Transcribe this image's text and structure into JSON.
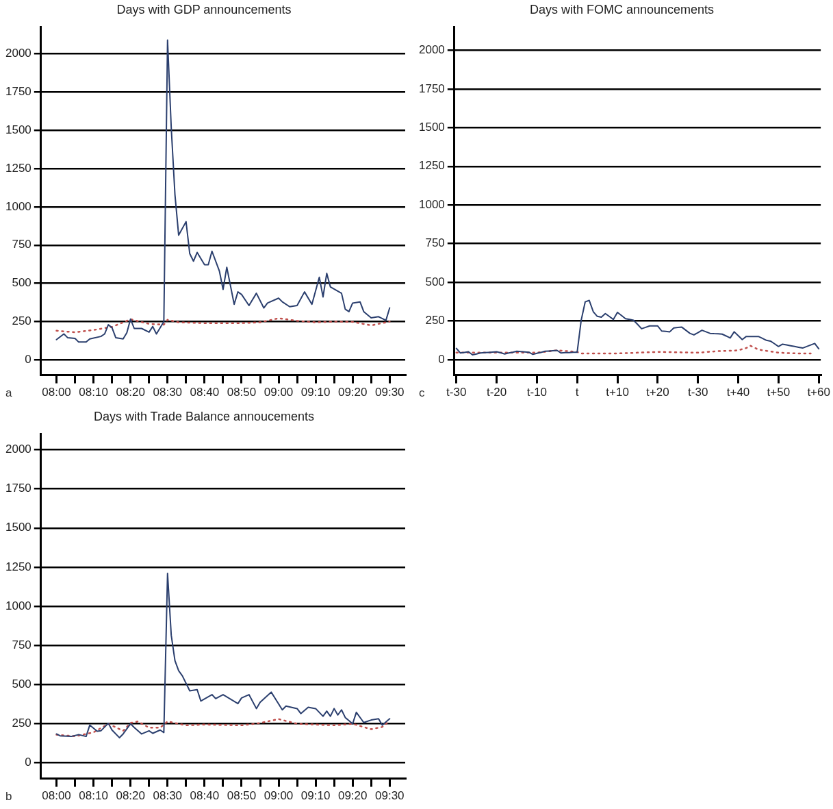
{
  "chart_data": [
    {
      "type": "line",
      "title": "Days with GDP announcements",
      "annotations": [
        "a"
      ],
      "grid": "y",
      "marker": "none",
      "xlim": [
        7.93,
        9.57
      ],
      "ylim": [
        -100,
        2175
      ],
      "xticks": [
        {
          "value": 8,
          "label": "08:00"
        },
        {
          "value": 8.0833,
          "label": null
        },
        {
          "value": 8.1667,
          "label": "08:10"
        },
        {
          "value": 8.25,
          "label": null
        },
        {
          "value": 8.3333,
          "label": "08:20"
        },
        {
          "value": 8.4167,
          "label": null
        },
        {
          "value": 8.5,
          "label": "08:30"
        },
        {
          "value": 8.5833,
          "label": null
        },
        {
          "value": 8.6667,
          "label": "08:40"
        },
        {
          "value": 8.75,
          "label": null
        },
        {
          "value": 8.8333,
          "label": "08:50"
        },
        {
          "value": 8.9167,
          "label": null
        },
        {
          "value": 9,
          "label": "09:00"
        },
        {
          "value": 9.0833,
          "label": null
        },
        {
          "value": 9.1667,
          "label": "09:10"
        },
        {
          "value": 9.25,
          "label": null
        },
        {
          "value": 9.3333,
          "label": "09:20"
        },
        {
          "value": 9.4167,
          "label": null
        },
        {
          "value": 9.5,
          "label": "09:30"
        }
      ],
      "yticks": [
        0,
        250,
        500,
        750,
        1000,
        1250,
        1500,
        1750,
        2000
      ],
      "series": [
        {
          "color": "#2b3f6e",
          "line_style": "solid",
          "x": [
            8,
            8.0333,
            8.05,
            8.0833,
            8.1,
            8.1333,
            8.15,
            8.2,
            8.2167,
            8.2333,
            8.25,
            8.2667,
            8.3,
            8.3167,
            8.3333,
            8.35,
            8.3833,
            8.4167,
            8.4333,
            8.45,
            8.4833,
            8.5,
            8.5167,
            8.5333,
            8.55,
            8.5833,
            8.6,
            8.6167,
            8.6333,
            8.6667,
            8.6833,
            8.7,
            8.7333,
            8.75,
            8.7667,
            8.8,
            8.8167,
            8.8333,
            8.8667,
            8.9,
            8.9333,
            8.95,
            9,
            9.0167,
            9.05,
            9.0833,
            9.1167,
            9.15,
            9.1833,
            9.2,
            9.2167,
            9.2333,
            9.2833,
            9.3,
            9.3167,
            9.3333,
            9.3667,
            9.3833,
            9.4167,
            9.45,
            9.4833,
            9.5
          ],
          "values": [
            132,
            169,
            145,
            140,
            116,
            116,
            137,
            153,
            169,
            229,
            210,
            145,
            137,
            177,
            266,
            205,
            205,
            181,
            218,
            169,
            250,
            2090,
            1516,
            1080,
            815,
            903,
            694,
            645,
            702,
            621,
            621,
            710,
            581,
            460,
            605,
            363,
            444,
            427,
            355,
            435,
            339,
            371,
            403,
            379,
            347,
            355,
            444,
            363,
            540,
            411,
            565,
            476,
            435,
            331,
            315,
            371,
            379,
            315,
            274,
            282,
            258,
            339
          ]
        },
        {
          "color": "#c0504d",
          "line_style": "dotted",
          "x": [
            8,
            8.0833,
            8.1667,
            8.25,
            8.3333,
            8.4167,
            8.4833,
            8.5,
            8.55,
            8.6667,
            8.8333,
            8.9167,
            9,
            9.0833,
            9.1667,
            9.25,
            9.3333,
            9.4167,
            9.5
          ],
          "values": [
            190,
            180,
            195,
            215,
            265,
            235,
            230,
            262,
            245,
            240,
            240,
            245,
            272,
            255,
            245,
            250,
            248,
            225,
            250
          ]
        }
      ]
    },
    {
      "type": "line",
      "title": "Days with FOMC announcements",
      "annotations": [
        "c"
      ],
      "grid": "y",
      "marker": "none",
      "ylim": [
        -100,
        2150
      ],
      "categories": [
        "t-30",
        null,
        null,
        null,
        null,
        null,
        null,
        null,
        null,
        null,
        "t-20",
        null,
        null,
        null,
        null,
        null,
        null,
        null,
        null,
        null,
        "t-10",
        null,
        null,
        null,
        null,
        null,
        null,
        null,
        null,
        null,
        "t",
        null,
        null,
        null,
        null,
        null,
        null,
        null,
        null,
        null,
        "t+10",
        null,
        null,
        null,
        null,
        null,
        null,
        null,
        null,
        null,
        "t+20",
        null,
        null,
        null,
        null,
        null,
        null,
        null,
        null,
        null,
        "t-30",
        null,
        null,
        null,
        null,
        null,
        null,
        null,
        null,
        null,
        "t+40",
        null,
        null,
        null,
        null,
        null,
        null,
        null,
        null,
        null,
        "t+50",
        null,
        null,
        null,
        null,
        null,
        null,
        null,
        null,
        null,
        "t+60"
      ],
      "yticks": [
        0,
        250,
        500,
        750,
        1000,
        1250,
        1500,
        1750,
        2000
      ],
      "series": [
        {
          "color": "#2b3f6e",
          "line_style": "solid",
          "values": [
            73,
            43,
            47,
            51,
            31,
            37,
            43,
            45,
            47,
            49,
            51,
            44,
            37,
            43,
            48,
            54,
            52,
            50,
            48,
            34,
            41,
            47,
            54,
            56,
            58,
            60,
            43,
            45,
            46,
            48,
            48,
            255,
            374,
            383,
            310,
            280,
            275,
            298,
            279,
            260,
            306,
            286,
            265,
            260,
            255,
            228,
            200,
            209,
            218,
            218,
            218,
            185,
            183,
            180,
            205,
            208,
            210,
            190,
            170,
            160,
            175,
            190,
            180,
            170,
            168,
            167,
            165,
            153,
            140,
            180,
            155,
            130,
            150,
            150,
            150,
            150,
            138,
            125,
            120,
            103,
            85,
            100,
            95,
            90,
            85,
            80,
            75,
            85,
            95,
            105,
            70
          ]
        },
        {
          "color": "#c0504d",
          "line_style": "dotted",
          "values": [
            45,
            45,
            45,
            45,
            45,
            45,
            45,
            45,
            45,
            45,
            45,
            45,
            45,
            45,
            45,
            45,
            45,
            45,
            45,
            45,
            45,
            48,
            51,
            54,
            57,
            60,
            58,
            56,
            54,
            52,
            50,
            40,
            40,
            40,
            40,
            40,
            40,
            40,
            40,
            40,
            40,
            41,
            42,
            43,
            44,
            45,
            46,
            47,
            48,
            49,
            50,
            50,
            49,
            49,
            48,
            48,
            47,
            47,
            46,
            46,
            45,
            47,
            49,
            51,
            53,
            55,
            56,
            57,
            58,
            59,
            60,
            68,
            75,
            90,
            78,
            65,
            61,
            57,
            53,
            49,
            45,
            44,
            43,
            42,
            41,
            40,
            40,
            40,
            40,
            null,
            null
          ]
        }
      ]
    },
    {
      "type": "line",
      "title": "Days with Trade Balance annoucements",
      "annotations": [
        "b"
      ],
      "grid": "y",
      "marker": "none",
      "xlim": [
        7.93,
        9.57
      ],
      "ylim": [
        -100,
        2100
      ],
      "xticks": [
        {
          "value": 8,
          "label": "08:00"
        },
        {
          "value": 8.0833,
          "label": null
        },
        {
          "value": 8.1667,
          "label": "08:10"
        },
        {
          "value": 8.25,
          "label": null
        },
        {
          "value": 8.3333,
          "label": "08:20"
        },
        {
          "value": 8.4167,
          "label": null
        },
        {
          "value": 8.5,
          "label": "08:30"
        },
        {
          "value": 8.5833,
          "label": null
        },
        {
          "value": 8.6667,
          "label": "08:40"
        },
        {
          "value": 8.75,
          "label": null
        },
        {
          "value": 8.8333,
          "label": "08:50"
        },
        {
          "value": 8.9167,
          "label": null
        },
        {
          "value": 9,
          "label": "09:00"
        },
        {
          "value": 9.0833,
          "label": null
        },
        {
          "value": 9.1667,
          "label": "09:10"
        },
        {
          "value": 9.25,
          "label": null
        },
        {
          "value": 9.3333,
          "label": "09:20"
        },
        {
          "value": 9.4167,
          "label": null
        },
        {
          "value": 9.5,
          "label": "09:30"
        }
      ],
      "yticks": [
        0,
        250,
        500,
        750,
        1000,
        1250,
        1500,
        1750,
        2000
      ],
      "series": [
        {
          "color": "#2b3f6e",
          "line_style": "solid",
          "x": [
            8,
            8.0167,
            8.0667,
            8.1,
            8.1333,
            8.15,
            8.1833,
            8.2,
            8.2333,
            8.25,
            8.2833,
            8.3,
            8.3333,
            8.35,
            8.3833,
            8.4167,
            8.4333,
            8.4667,
            8.4833,
            8.5,
            8.5167,
            8.5333,
            8.55,
            8.5667,
            8.6,
            8.6333,
            8.65,
            8.7,
            8.7167,
            8.75,
            8.8167,
            8.8333,
            8.8667,
            8.9,
            8.9167,
            8.9667,
            9.0167,
            9.0333,
            9.0833,
            9.1,
            9.1333,
            9.1667,
            9.2,
            9.2167,
            9.2333,
            9.25,
            9.2667,
            9.2833,
            9.3,
            9.3333,
            9.35,
            9.3833,
            9.4167,
            9.45,
            9.4667,
            9.5
          ],
          "values": [
            185,
            173,
            169,
            181,
            169,
            242,
            202,
            205,
            253,
            210,
            161,
            185,
            250,
            226,
            185,
            205,
            189,
            210,
            194,
            1210,
            815,
            653,
            589,
            556,
            460,
            468,
            395,
            436,
            411,
            436,
            379,
            415,
            436,
            347,
            387,
            452,
            339,
            363,
            347,
            315,
            355,
            347,
            298,
            331,
            298,
            347,
            306,
            339,
            290,
            250,
            323,
            258,
            274,
            282,
            242,
            282
          ]
        },
        {
          "color": "#c0504d",
          "line_style": "dotted",
          "x": [
            8,
            8.0833,
            8.1667,
            8.2333,
            8.3,
            8.3333,
            8.3667,
            8.4167,
            8.4667,
            8.5,
            8.5833,
            8.6667,
            8.8333,
            8.9167,
            9,
            9.0833,
            9.25,
            9.3333,
            9.4167,
            9.4667,
            9.5
          ],
          "values": [
            180,
            170,
            195,
            250,
            205,
            255,
            265,
            225,
            225,
            265,
            240,
            245,
            240,
            255,
            280,
            250,
            240,
            250,
            215,
            230,
            270
          ]
        }
      ]
    }
  ]
}
